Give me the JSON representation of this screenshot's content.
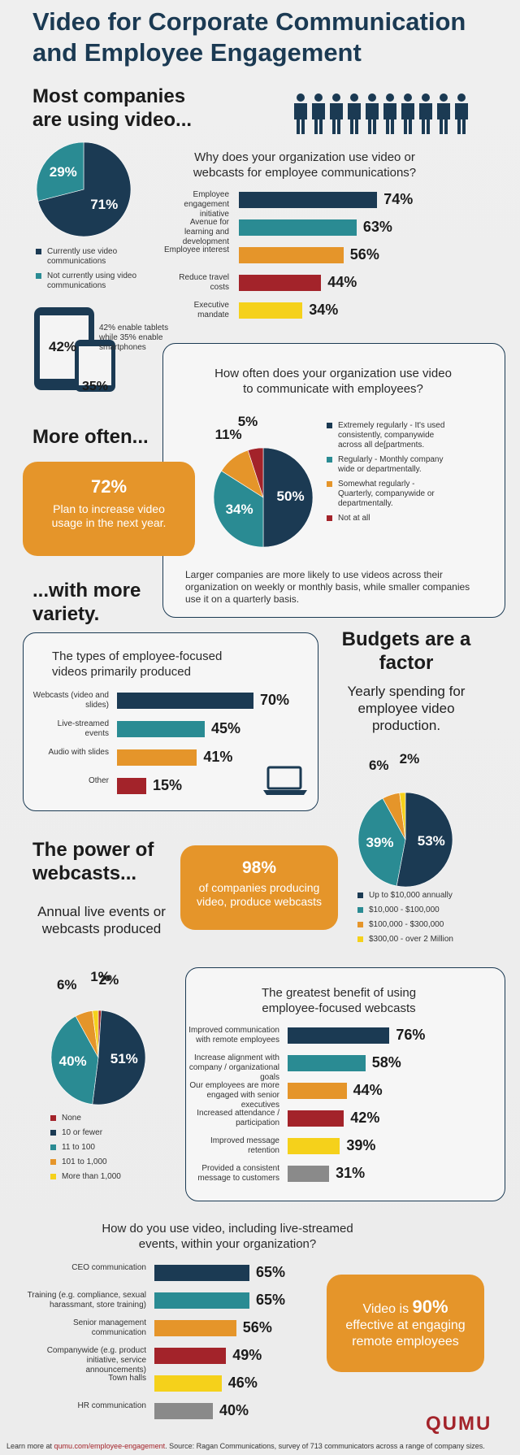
{
  "title": "Video for Corporate Communication and Employee Engagement",
  "section1": {
    "heading": "Most companies are using video..."
  },
  "colors": {
    "navy": "#1b3a53",
    "teal": "#2a8b93",
    "orange": "#e5952a",
    "red": "#a3232a",
    "yellow": "#f5d11b",
    "gray": "#8a8a8a"
  },
  "devices": {
    "tablet_pct": "42%",
    "phone_pct": "35%",
    "caption": "42% enable tablets while 35% enable smartphones"
  },
  "more_often": {
    "heading": "More often...",
    "stat": "72%",
    "text": "Plan to increase video usage in the next year."
  },
  "more_variety": {
    "heading": "...with more variety."
  },
  "budgets": {
    "heading": "Budgets are a factor",
    "subtitle": "Yearly spending for employee video production."
  },
  "webcasts": {
    "heading": "The power of webcasts...",
    "stat": "98%",
    "text": "of companies producing video, produce webcasts",
    "annual_title": "Annual live events or webcasts produced"
  },
  "engaging": {
    "pre": "Video is ",
    "stat": "90%",
    "post": "effective at engaging remote employees"
  },
  "logo": "QUMU",
  "footer": {
    "pre": "Learn more at ",
    "link": "qumu.com/employee-engagement",
    "post": ". Source: Ragan Communications, survey of 713 communicators across a range of company sizes."
  },
  "chart_data": [
    {
      "id": "usage",
      "type": "pie",
      "labels": [
        "Currently use video communications",
        "Not currently using video communications"
      ],
      "values": [
        71,
        29
      ],
      "display": [
        "71%",
        "29%"
      ],
      "colors": [
        "#1b3a53",
        "#2a8b93"
      ]
    },
    {
      "id": "why",
      "type": "bar",
      "title": "Why does your organization use video or webcasts for employee communications?",
      "categories": [
        "Employee engagement initiative",
        "Avenue for learning and development",
        "Employee interest",
        "Reduce travel costs",
        "Executive mandate"
      ],
      "values": [
        74,
        63,
        56,
        44,
        34
      ],
      "display": [
        "74%",
        "63%",
        "56%",
        "44%",
        "34%"
      ],
      "colors": [
        "#1b3a53",
        "#2a8b93",
        "#e5952a",
        "#a3232a",
        "#f5d11b"
      ]
    },
    {
      "id": "frequency",
      "type": "pie",
      "title": "How often does your organization use video to communicate with employees?",
      "labels": [
        "Extremely regularly - It's used consistently, companywide across all de[partments.",
        "Regularly - Monthly company wide or departmentally.",
        "Somewhat regularly - Quarterly, companywide or departmentally.",
        "Not at all"
      ],
      "values": [
        50,
        34,
        11,
        5
      ],
      "display": [
        "50%",
        "34%",
        "11%",
        "5%"
      ],
      "colors": [
        "#1b3a53",
        "#2a8b93",
        "#e5952a",
        "#a3232a"
      ],
      "note": "Larger companies are more likely to use videos across their organization on weekly or monthly basis, while smaller companies use it on a quarterly basis."
    },
    {
      "id": "types",
      "type": "bar",
      "title": "The types of employee-focused videos primarily produced",
      "categories": [
        "Webcasts (video and slides)",
        "Live-streamed events",
        "Audio with slides",
        "Other"
      ],
      "values": [
        70,
        45,
        41,
        15
      ],
      "display": [
        "70%",
        "45%",
        "41%",
        "15%"
      ],
      "colors": [
        "#1b3a53",
        "#2a8b93",
        "#e5952a",
        "#a3232a"
      ]
    },
    {
      "id": "budget",
      "type": "pie",
      "labels": [
        "Up to $10,000 annually",
        "$10,000 - $100,000",
        "$100,000 - $300,000",
        "$300,00 - over 2 Million"
      ],
      "values": [
        53,
        39,
        6,
        2
      ],
      "display": [
        "53%",
        "39%",
        "6%",
        "2%"
      ],
      "colors": [
        "#1b3a53",
        "#2a8b93",
        "#e5952a",
        "#f5d11b"
      ]
    },
    {
      "id": "annual",
      "type": "pie",
      "labels": [
        "None",
        "10 or fewer",
        "11 to 100",
        "101 to 1,000",
        "More than 1,000"
      ],
      "values": [
        1,
        51,
        40,
        6,
        2
      ],
      "display": [
        "1%",
        "51%",
        "40%",
        "6%",
        "2%"
      ],
      "colors": [
        "#a3232a",
        "#1b3a53",
        "#2a8b93",
        "#e5952a",
        "#f5d11b"
      ]
    },
    {
      "id": "benefit",
      "type": "bar",
      "title": "The greatest benefit of using employee-focused webcasts",
      "categories": [
        "Improved communication with remote employees",
        "Increase alignment with company / organizational goals",
        "Our employees are more engaged with senior executives",
        "Increased attendance / participation",
        "Improved message retention",
        "Provided a consistent message to customers"
      ],
      "values": [
        76,
        58,
        44,
        42,
        39,
        31
      ],
      "display": [
        "76%",
        "58%",
        "44%",
        "42%",
        "39%",
        "31%"
      ],
      "colors": [
        "#1b3a53",
        "#2a8b93",
        "#e5952a",
        "#a3232a",
        "#f5d11b",
        "#8a8a8a"
      ]
    },
    {
      "id": "uses",
      "type": "bar",
      "title": "How do you use video, including live-streamed events, within your organization?",
      "categories": [
        "CEO communication",
        "Training (e.g. compliance, sexual harassmant, store training)",
        "Senior management communication",
        "Companywide (e.g. product initiative, service announcements)",
        "Town halls",
        "HR communication"
      ],
      "values": [
        65,
        65,
        56,
        49,
        46,
        40
      ],
      "display": [
        "65%",
        "65%",
        "56%",
        "49%",
        "46%",
        "40%"
      ],
      "colors": [
        "#1b3a53",
        "#2a8b93",
        "#e5952a",
        "#a3232a",
        "#f5d11b",
        "#8a8a8a"
      ]
    }
  ]
}
